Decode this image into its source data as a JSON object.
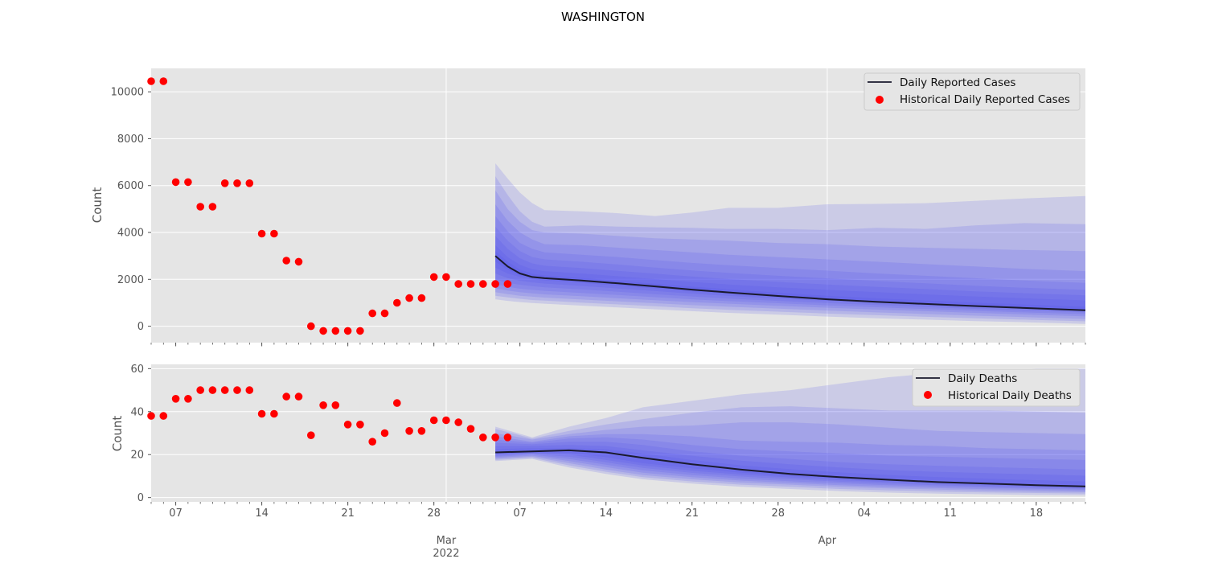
{
  "figure": {
    "title": "WASHINGTON"
  },
  "x_axis": {
    "ticks": [
      {
        "date": "2022-02-07",
        "label": "07"
      },
      {
        "date": "2022-02-14",
        "label": "14"
      },
      {
        "date": "2022-02-21",
        "label": "21"
      },
      {
        "date": "2022-02-28",
        "label": "28"
      },
      {
        "date": "2022-03-07",
        "label": "07"
      },
      {
        "date": "2022-03-14",
        "label": "14"
      },
      {
        "date": "2022-03-21",
        "label": "21"
      },
      {
        "date": "2022-03-28",
        "label": "28"
      },
      {
        "date": "2022-04-04",
        "label": "04"
      },
      {
        "date": "2022-04-11",
        "label": "11"
      },
      {
        "date": "2022-04-18",
        "label": "18"
      }
    ],
    "month_labels": [
      {
        "date": "2022-03-01",
        "label": "Mar",
        "year": "2022"
      },
      {
        "date": "2022-04-01",
        "label": "Apr",
        "year": ""
      }
    ],
    "range": [
      "2022-02-05",
      "2022-04-22"
    ]
  },
  "chart_data": [
    {
      "type": "line",
      "ylabel": "Count",
      "ylim": [
        -700,
        11000
      ],
      "yticks": [
        0,
        2000,
        4000,
        6000,
        8000,
        10000
      ],
      "grid": true,
      "legend_position": "top-right",
      "series": [
        {
          "name": "Historical Daily Reported Cases",
          "kind": "scatter",
          "color": "#ff0000",
          "x": [
            "2022-02-05",
            "2022-02-06",
            "2022-02-07",
            "2022-02-08",
            "2022-02-09",
            "2022-02-10",
            "2022-02-11",
            "2022-02-12",
            "2022-02-13",
            "2022-02-14",
            "2022-02-15",
            "2022-02-16",
            "2022-02-17",
            "2022-02-18",
            "2022-02-19",
            "2022-02-20",
            "2022-02-21",
            "2022-02-22",
            "2022-02-23",
            "2022-02-24",
            "2022-02-25",
            "2022-02-26",
            "2022-02-27",
            "2022-02-28",
            "2022-03-01",
            "2022-03-02",
            "2022-03-03",
            "2022-03-04",
            "2022-03-05",
            "2022-03-06"
          ],
          "values": [
            10450,
            10450,
            6150,
            6150,
            5100,
            5100,
            6100,
            6100,
            6100,
            3950,
            3950,
            2800,
            2750,
            0,
            -200,
            -200,
            -200,
            -200,
            550,
            550,
            1000,
            1200,
            1200,
            2100,
            2100,
            1800,
            1800,
            1800,
            1800,
            1800
          ]
        },
        {
          "name": "Daily Reported Cases",
          "kind": "line",
          "color": "#1a1a2e",
          "x": [
            "2022-03-05",
            "2022-03-06",
            "2022-03-07",
            "2022-03-08",
            "2022-03-09",
            "2022-03-12",
            "2022-03-15",
            "2022-03-18",
            "2022-03-21",
            "2022-03-24",
            "2022-03-28",
            "2022-04-01",
            "2022-04-05",
            "2022-04-09",
            "2022-04-13",
            "2022-04-17",
            "2022-04-22"
          ],
          "values": [
            3000,
            2550,
            2250,
            2100,
            2050,
            1950,
            1830,
            1700,
            1560,
            1440,
            1290,
            1150,
            1040,
            950,
            860,
            780,
            680
          ]
        }
      ],
      "bands": {
        "color": "#4b4bef",
        "x": [
          "2022-03-05",
          "2022-03-06",
          "2022-03-07",
          "2022-03-08",
          "2022-03-09",
          "2022-03-12",
          "2022-03-15",
          "2022-03-18",
          "2022-03-21",
          "2022-03-24",
          "2022-03-28",
          "2022-04-01",
          "2022-04-05",
          "2022-04-09",
          "2022-04-13",
          "2022-04-17",
          "2022-04-22"
        ],
        "levels": [
          {
            "lower": [
              1150,
              1080,
              1030,
              990,
              960,
              880,
              800,
              720,
              640,
              570,
              490,
              410,
              340,
              280,
              220,
              170,
              100
            ],
            "upper": [
              6950,
              6300,
              5700,
              5250,
              4950,
              4900,
              4820,
              4700,
              4850,
              5050,
              5050,
              5200,
              5220,
              5250,
              5350,
              5450,
              5550
            ]
          },
          {
            "lower": [
              1300,
              1230,
              1170,
              1120,
              1090,
              1010,
              930,
              850,
              770,
              700,
              620,
              540,
              470,
              400,
              340,
              280,
              210
            ],
            "upper": [
              6400,
              5600,
              4900,
              4450,
              4250,
              4300,
              4250,
              4220,
              4200,
              4150,
              4150,
              4100,
              4200,
              4150,
              4300,
              4400,
              4350
            ]
          },
          {
            "lower": [
              1450,
              1370,
              1300,
              1260,
              1220,
              1140,
              1060,
              980,
              900,
              830,
              750,
              670,
              590,
              520,
              450,
              390,
              310
            ],
            "upper": [
              5800,
              5000,
              4450,
              4100,
              4000,
              3950,
              3850,
              3750,
              3700,
              3650,
              3550,
              3500,
              3400,
              3350,
              3300,
              3250,
              3200
            ]
          },
          {
            "lower": [
              1620,
              1520,
              1450,
              1400,
              1360,
              1280,
              1190,
              1110,
              1030,
              960,
              870,
              790,
              710,
              640,
              570,
              500,
              420
            ],
            "upper": [
              5200,
              4500,
              4000,
              3700,
              3500,
              3450,
              3350,
              3250,
              3150,
              3050,
              2950,
              2850,
              2750,
              2650,
              2550,
              2450,
              2350
            ]
          },
          {
            "lower": [
              1800,
              1680,
              1600,
              1550,
              1510,
              1420,
              1330,
              1240,
              1150,
              1070,
              980,
              890,
              810,
              730,
              660,
              590,
              510
            ],
            "upper": [
              4700,
              4050,
              3550,
              3300,
              3150,
              3050,
              2950,
              2820,
              2700,
              2600,
              2480,
              2370,
              2250,
              2150,
              2050,
              1950,
              1850
            ]
          },
          {
            "lower": [
              2000,
              1850,
              1770,
              1710,
              1660,
              1570,
              1470,
              1370,
              1270,
              1180,
              1080,
              990,
              900,
              820,
              740,
              670,
              590
            ],
            "upper": [
              4250,
              3650,
              3200,
              2950,
              2850,
              2750,
              2630,
              2500,
              2380,
              2270,
              2150,
              2040,
              1930,
              1830,
              1730,
              1640,
              1550
            ]
          },
          {
            "lower": [
              2250,
              2050,
              1940,
              1870,
              1820,
              1720,
              1610,
              1500,
              1390,
              1290,
              1180,
              1080,
              990,
              900,
              820,
              740,
              650
            ],
            "upper": [
              3850,
              3300,
              2900,
              2680,
              2580,
              2480,
              2360,
              2240,
              2120,
              2010,
              1890,
              1780,
              1680,
              1590,
              1490,
              1410,
              1320
            ]
          },
          {
            "lower": [
              2500,
              2250,
              2100,
              2000,
              1950,
              1850,
              1730,
              1610,
              1490,
              1380,
              1260,
              1150,
              1050,
              960,
              870,
              790,
              700
            ],
            "upper": [
              3450,
              2950,
              2620,
              2430,
              2350,
              2250,
              2130,
              2010,
              1890,
              1780,
              1660,
              1550,
              1450,
              1360,
              1270,
              1190,
              1100
            ]
          },
          {
            "lower": [
              2750,
              2420,
              2180,
              2060,
              2010,
              1910,
              1790,
              1660,
              1530,
              1410,
              1280,
              1150,
              1050,
              960,
              870,
              790,
              690
            ],
            "upper": [
              3200,
              2750,
              2420,
              2240,
              2170,
              2060,
              1940,
              1810,
              1690,
              1570,
              1430,
              1300,
              1190,
              1100,
              1010,
              930,
              830
            ]
          }
        ]
      }
    },
    {
      "type": "line",
      "ylabel": "Count",
      "ylim": [
        -2,
        62
      ],
      "yticks": [
        0,
        20,
        40,
        60
      ],
      "grid": true,
      "legend_position": "top-right",
      "series": [
        {
          "name": "Historical Daily Deaths",
          "kind": "scatter",
          "color": "#ff0000",
          "x": [
            "2022-02-05",
            "2022-02-06",
            "2022-02-07",
            "2022-02-08",
            "2022-02-09",
            "2022-02-10",
            "2022-02-11",
            "2022-02-12",
            "2022-02-13",
            "2022-02-14",
            "2022-02-15",
            "2022-02-16",
            "2022-02-17",
            "2022-02-18",
            "2022-02-19",
            "2022-02-20",
            "2022-02-21",
            "2022-02-22",
            "2022-02-23",
            "2022-02-24",
            "2022-02-25",
            "2022-02-26",
            "2022-02-27",
            "2022-02-28",
            "2022-03-01",
            "2022-03-02",
            "2022-03-03",
            "2022-03-04",
            "2022-03-05",
            "2022-03-06"
          ],
          "values": [
            38,
            38,
            46,
            46,
            50,
            50,
            50,
            50,
            50,
            39,
            39,
            47,
            47,
            29,
            43,
            43,
            34,
            34,
            26,
            30,
            44,
            31,
            31,
            36,
            36,
            35,
            32,
            28,
            28,
            28
          ]
        },
        {
          "name": "Daily Deaths",
          "kind": "line",
          "color": "#1a1a2e",
          "x": [
            "2022-03-05",
            "2022-03-08",
            "2022-03-11",
            "2022-03-14",
            "2022-03-17",
            "2022-03-21",
            "2022-03-25",
            "2022-03-29",
            "2022-04-02",
            "2022-04-06",
            "2022-04-10",
            "2022-04-14",
            "2022-04-18",
            "2022-04-22"
          ],
          "values": [
            21,
            21.5,
            22,
            21,
            18.5,
            15.5,
            13,
            11,
            9.5,
            8.3,
            7.2,
            6.5,
            5.8,
            5.2
          ]
        }
      ],
      "bands": {
        "color": "#4b4bef",
        "x": [
          "2022-03-05",
          "2022-03-08",
          "2022-03-11",
          "2022-03-14",
          "2022-03-17",
          "2022-03-21",
          "2022-03-25",
          "2022-03-29",
          "2022-04-02",
          "2022-04-06",
          "2022-04-10",
          "2022-04-14",
          "2022-04-18",
          "2022-04-22"
        ],
        "levels": [
          {
            "lower": [
              17,
              18,
              14,
              11,
              8.5,
              6.5,
              5,
              4,
              3,
              2.3,
              1.8,
              1.5,
              1.2,
              1
            ],
            "upper": [
              33,
              28,
              33,
              37,
              42,
              45,
              48,
              50,
              53,
              56,
              58,
              59,
              60,
              60
            ]
          },
          {
            "lower": [
              17.5,
              18.5,
              15,
              12,
              9.5,
              7.5,
              6,
              5,
              4,
              3.3,
              2.8,
              2.4,
              2.1,
              1.8
            ],
            "upper": [
              32,
              27.5,
              31,
              34,
              36.5,
              39.5,
              42,
              42.5,
              41.5,
              40.5,
              40.5,
              40.5,
              40,
              39.5
            ]
          },
          {
            "lower": [
              18,
              19,
              16,
              13,
              10.5,
              8.5,
              7,
              6,
              5,
              4.3,
              3.7,
              3.2,
              2.8,
              2.5
            ],
            "upper": [
              30,
              27,
              29.5,
              31.5,
              33,
              33.5,
              35,
              35,
              34,
              32.5,
              31,
              30.5,
              30,
              29.5
            ]
          },
          {
            "lower": [
              18.5,
              19.5,
              17,
              14.2,
              11.6,
              9.5,
              7.9,
              6.8,
              5.8,
              5,
              4.4,
              3.9,
              3.5,
              3.1
            ],
            "upper": [
              28.5,
              26,
              28.5,
              29.5,
              29.5,
              28.5,
              26.5,
              26,
              25.5,
              24.5,
              24,
              23,
              22.5,
              22
            ]
          },
          {
            "lower": [
              19,
              20,
              18,
              15.3,
              12.7,
              10.5,
              8.8,
              7.6,
              6.6,
              5.8,
              5.1,
              4.6,
              4.1,
              3.7
            ],
            "upper": [
              27,
              25.5,
              27.5,
              28,
              27,
              24.5,
              22.5,
              21.5,
              20.5,
              19.5,
              19,
              18.5,
              18,
              17.5
            ]
          },
          {
            "lower": [
              19.5,
              20.3,
              19,
              16.4,
              13.8,
              11.5,
              9.8,
              8.5,
              7.4,
              6.5,
              5.7,
              5.1,
              4.6,
              4.2
            ],
            "upper": [
              25.5,
              24.8,
              26,
              26,
              24.5,
              21.5,
              19.5,
              18,
              16.5,
              15.5,
              14.8,
              14.2,
              13.6,
              13
            ]
          },
          {
            "lower": [
              20,
              20.7,
              20,
              17.5,
              14.9,
              12.5,
              10.7,
              9.3,
              8.1,
              7.2,
              6.4,
              5.7,
              5.1,
              4.6
            ],
            "upper": [
              24,
              24,
              24.5,
              24,
              22,
              19.5,
              17.2,
              15.5,
              14,
              12.8,
              12,
              11.4,
              10.8,
              10.2
            ]
          },
          {
            "lower": [
              20.5,
              21,
              20.8,
              18.8,
              16,
              13.6,
              11.6,
              10.1,
              8.9,
              7.9,
              7,
              6.3,
              5.7,
              5.1
            ],
            "upper": [
              22.5,
              23,
              23,
              22.5,
              20.5,
              17.5,
              15,
              13.2,
              11.7,
              10.5,
              9.5,
              8.8,
              8.1,
              7.5
            ]
          }
        ]
      }
    }
  ]
}
